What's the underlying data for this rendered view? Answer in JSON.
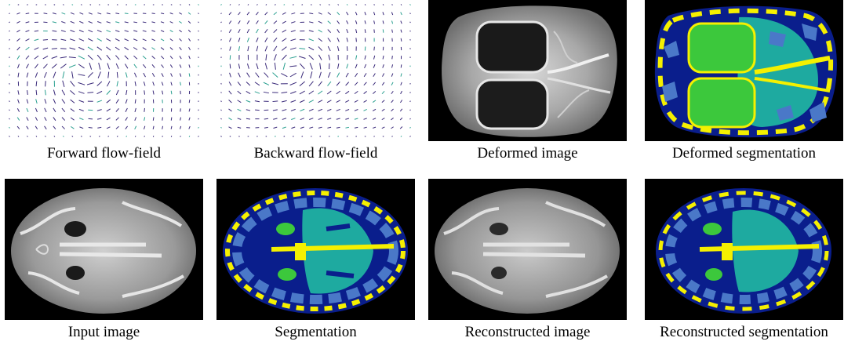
{
  "panels": [
    {
      "caption": "Forward flow-field"
    },
    {
      "caption": "Backward flow-field"
    },
    {
      "caption": "Deformed image"
    },
    {
      "caption": "Deformed segmentation"
    },
    {
      "caption": "Input image"
    },
    {
      "caption": "Segmentation"
    },
    {
      "caption": "Reconstructed image"
    },
    {
      "caption": "Reconstructed segmentation"
    }
  ],
  "colors": {
    "background": "#000000",
    "label_dark_blue": "#0a1e8c",
    "label_light_blue": "#4a78c8",
    "label_teal": "#1eaaa0",
    "label_yellow": "#f5f000",
    "label_green": "#3cc83c",
    "flow_arrow": "#3a2a7a",
    "flow_arrow_alt": "#2aa090"
  }
}
